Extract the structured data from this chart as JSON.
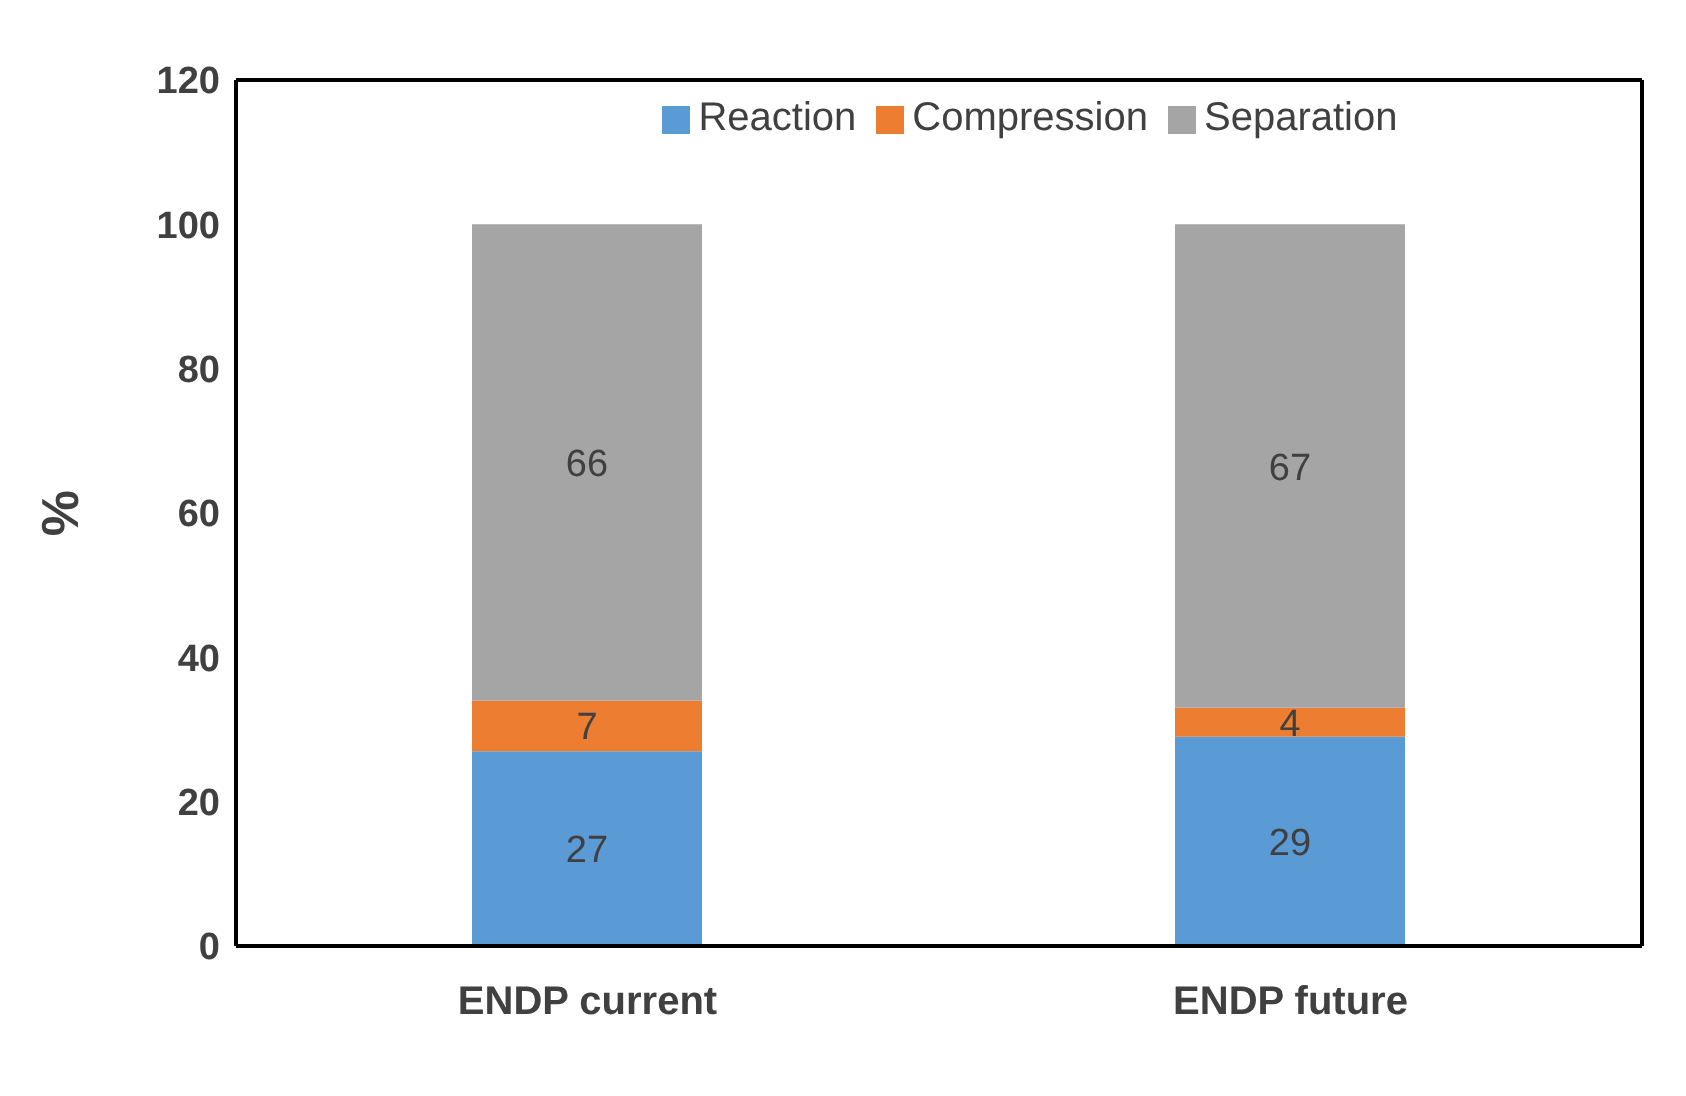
{
  "chart_data": {
    "type": "bar",
    "stacked": true,
    "ylabel": "%",
    "categories": [
      "ENDP current",
      "ENDP future"
    ],
    "series": [
      {
        "name": "Reaction",
        "color": "#5b9bd5",
        "values": [
          27,
          29
        ]
      },
      {
        "name": "Compression",
        "color": "#ed7d31",
        "values": [
          7,
          4
        ]
      },
      {
        "name": "Separation",
        "color": "#a5a5a5",
        "values": [
          66,
          67
        ]
      }
    ],
    "ylim": [
      0,
      120
    ],
    "yticks": [
      0,
      20,
      40,
      60,
      80,
      100,
      120
    ],
    "data_labels": true,
    "legend": "top",
    "grid": false
  }
}
